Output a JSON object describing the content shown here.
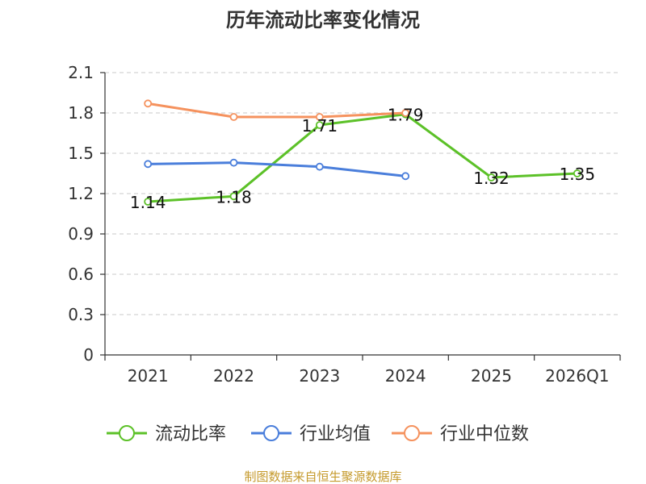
{
  "chart_data": {
    "type": "line",
    "title": "历年流动比率变化情况",
    "categories": [
      "2021",
      "2022",
      "2023",
      "2024",
      "2025",
      "2026Q1"
    ],
    "ylim": [
      0,
      2.1
    ],
    "yticks": [
      "0",
      "0.3",
      "0.6",
      "0.9",
      "1.2",
      "1.5",
      "1.8",
      "2.1"
    ],
    "grid": true,
    "legend_position": "bottom",
    "series": [
      {
        "name": "流动比率",
        "color": "#5cc128",
        "values": [
          1.14,
          1.18,
          1.71,
          1.79,
          1.32,
          1.35
        ],
        "labels": [
          "1.14",
          "1.18",
          "1.71",
          "1.79",
          "1.32",
          "1.35"
        ]
      },
      {
        "name": "行业均值",
        "color": "#4a7edb",
        "values": [
          1.42,
          1.43,
          1.4,
          1.33,
          null,
          null
        ]
      },
      {
        "name": "行业中位数",
        "color": "#f5925e",
        "values": [
          1.87,
          1.77,
          1.77,
          1.8,
          null,
          null
        ]
      }
    ]
  },
  "source_note": "制图数据来自恒生聚源数据库"
}
